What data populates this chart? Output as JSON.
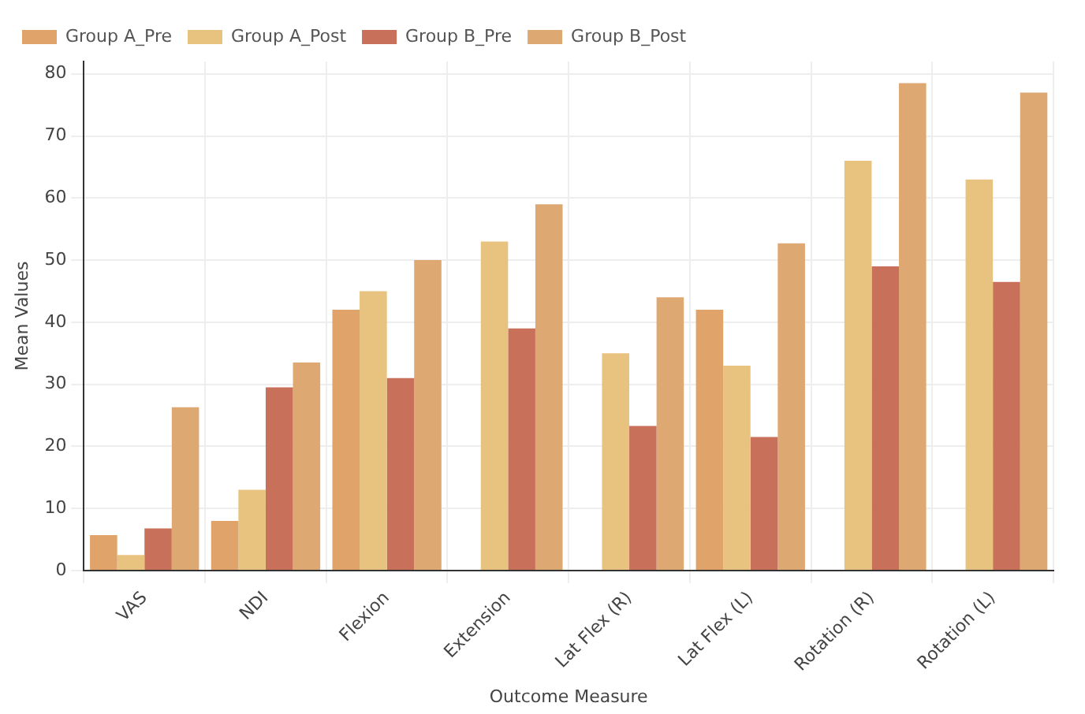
{
  "chart_data": {
    "type": "bar",
    "xlabel": "Outcome Measure",
    "ylabel": "Mean Values",
    "categories": [
      "VAS",
      "NDI",
      "Flexion",
      "Extension",
      "Lat Flex (R)",
      "Lat Flex (L)",
      "Rotation (R)",
      "Rotation (L)"
    ],
    "series": [
      {
        "name": "Group A_Pre",
        "color": "#e0a46a",
        "values": [
          5.7,
          8,
          42,
          null,
          null,
          42,
          null,
          null
        ]
      },
      {
        "name": "Group A_Post",
        "color": "#e8c27f",
        "values": [
          2.5,
          13,
          45,
          53,
          35,
          33,
          66,
          63
        ]
      },
      {
        "name": "Group B_Pre",
        "color": "#c8705a",
        "values": [
          6.8,
          29.5,
          31,
          39,
          23.3,
          21.5,
          49,
          46.5
        ]
      },
      {
        "name": "Group B_Post",
        "color": "#dea872",
        "values": [
          26.3,
          33.5,
          50,
          59,
          44,
          52.7,
          78.5,
          77
        ]
      }
    ],
    "ylim": [
      0,
      82
    ],
    "yticks": [
      0,
      10,
      20,
      30,
      40,
      50,
      60,
      70,
      80
    ],
    "grid": true,
    "legend": "top left"
  }
}
